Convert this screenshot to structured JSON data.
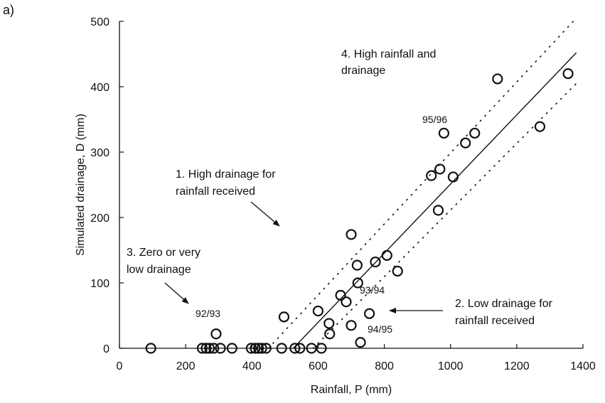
{
  "chart_data": {
    "type": "scatter",
    "panel_label": "a)",
    "xlabel": "Rainfall, P (mm)",
    "ylabel": "Simulated drainage, D (mm)",
    "xlim": [
      0,
      1400
    ],
    "ylim": [
      0,
      500
    ],
    "x_ticks": [
      0,
      200,
      400,
      600,
      800,
      1000,
      1200,
      1400
    ],
    "y_ticks": [
      0,
      100,
      200,
      300,
      400,
      500
    ],
    "grid": false,
    "points": [
      {
        "x": 95,
        "y": 0
      },
      {
        "x": 250,
        "y": 0
      },
      {
        "x": 262,
        "y": 0
      },
      {
        "x": 272,
        "y": 0
      },
      {
        "x": 285,
        "y": 0
      },
      {
        "x": 305,
        "y": 0
      },
      {
        "x": 340,
        "y": 0
      },
      {
        "x": 398,
        "y": 0
      },
      {
        "x": 410,
        "y": 0
      },
      {
        "x": 420,
        "y": 0
      },
      {
        "x": 430,
        "y": 0
      },
      {
        "x": 443,
        "y": 0
      },
      {
        "x": 490,
        "y": 0
      },
      {
        "x": 530,
        "y": 0
      },
      {
        "x": 545,
        "y": 0
      },
      {
        "x": 580,
        "y": 0
      },
      {
        "x": 610,
        "y": 0
      },
      {
        "x": 292,
        "y": 22
      },
      {
        "x": 497,
        "y": 48
      },
      {
        "x": 600,
        "y": 57
      },
      {
        "x": 633,
        "y": 38
      },
      {
        "x": 635,
        "y": 22
      },
      {
        "x": 668,
        "y": 81
      },
      {
        "x": 685,
        "y": 71
      },
      {
        "x": 700,
        "y": 174
      },
      {
        "x": 700,
        "y": 35
      },
      {
        "x": 718,
        "y": 127
      },
      {
        "x": 720,
        "y": 100
      },
      {
        "x": 728,
        "y": 9
      },
      {
        "x": 755,
        "y": 53
      },
      {
        "x": 773,
        "y": 132
      },
      {
        "x": 808,
        "y": 142
      },
      {
        "x": 840,
        "y": 118
      },
      {
        "x": 942,
        "y": 264
      },
      {
        "x": 963,
        "y": 211
      },
      {
        "x": 968,
        "y": 274
      },
      {
        "x": 980,
        "y": 329
      },
      {
        "x": 1008,
        "y": 262
      },
      {
        "x": 1045,
        "y": 314
      },
      {
        "x": 1073,
        "y": 329
      },
      {
        "x": 1142,
        "y": 412
      },
      {
        "x": 1270,
        "y": 339
      },
      {
        "x": 1355,
        "y": 420
      }
    ],
    "lines": [
      {
        "style": "solid",
        "x": [
          525,
          1380
        ],
        "y": [
          0,
          452
        ]
      },
      {
        "style": "dotted",
        "x": [
          450,
          1380
        ],
        "y": [
          0,
          505
        ]
      },
      {
        "style": "dotted",
        "x": [
          585,
          1380
        ],
        "y": [
          0,
          405
        ]
      }
    ],
    "point_labels": [
      {
        "text": "92/93",
        "x": 292,
        "y": 22
      },
      {
        "text": "93/94",
        "x": 720,
        "y": 100
      },
      {
        "text": "94/95",
        "x": 728,
        "y": 9
      },
      {
        "text": "95/96",
        "x": 980,
        "y": 329
      }
    ],
    "annotations": [
      {
        "lines": [
          "4. High rainfall and",
          "drainage"
        ]
      },
      {
        "lines": [
          "1. High drainage for",
          "rainfall received"
        ]
      },
      {
        "lines": [
          "2. Low drainage for",
          "rainfall received"
        ]
      },
      {
        "lines": [
          "3. Zero or very",
          "low drainage"
        ]
      }
    ]
  }
}
